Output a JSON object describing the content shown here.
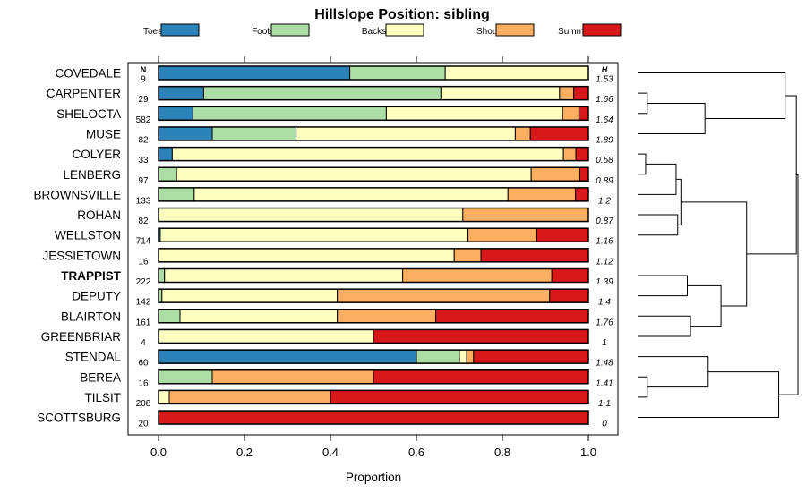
{
  "chart_data": {
    "type": "bar",
    "stacked": true,
    "orientation": "horizontal",
    "title": "Hillslope Position: sibling",
    "xlabel": "Proportion",
    "ylabel": "",
    "xlim": [
      0,
      1
    ],
    "xticks": [
      "0.0",
      "0.2",
      "0.4",
      "0.6",
      "0.8",
      "1.0"
    ],
    "n_header": "N",
    "h_header": "H",
    "legend": [
      "Toeslope",
      "Footslope",
      "Backslope",
      "Shoulder",
      "Summit"
    ],
    "colors": [
      "#2b83ba",
      "#abdda4",
      "#ffffbf",
      "#fdae61",
      "#d7191c"
    ],
    "highlight": "TRAPPIST",
    "categories": [
      "COVEDALE",
      "CARPENTER",
      "SHELOCTA",
      "MUSE",
      "COLYER",
      "LENBERG",
      "BROWNSVILLE",
      "ROHAN",
      "WELLSTON",
      "JESSIETOWN",
      "TRAPPIST",
      "DEPUTY",
      "BLAIRTON",
      "GREENBRIAR",
      "STENDAL",
      "BEREA",
      "TILSIT",
      "SCOTTSBURG"
    ],
    "n": [
      "9",
      "29",
      "582",
      "82",
      "33",
      "97",
      "133",
      "82",
      "714",
      "16",
      "222",
      "142",
      "161",
      "4",
      "60",
      "16",
      "208",
      "20"
    ],
    "h": [
      "1.53",
      "1.66",
      "1.64",
      "1.89",
      "0.58",
      "0.89",
      "1.2",
      "0.87",
      "1.16",
      "1.12",
      "1.39",
      "1.4",
      "1.76",
      "1",
      "1.48",
      "1.41",
      "1.1",
      "0"
    ],
    "series": [
      {
        "name": "Toeslope",
        "values": [
          0.445,
          0.105,
          0.08,
          0.125,
          0.032,
          0.0,
          0.0,
          0.0,
          0.004,
          0.0,
          0.0,
          0.0,
          0.0,
          0.0,
          0.6,
          0.0,
          0.0,
          0.0
        ]
      },
      {
        "name": "Footslope",
        "values": [
          0.222,
          0.552,
          0.45,
          0.195,
          0.0,
          0.042,
          0.083,
          0.0,
          0.0,
          0.0,
          0.014,
          0.008,
          0.05,
          0.0,
          0.1,
          0.125,
          0.0,
          0.0
        ]
      },
      {
        "name": "Backslope",
        "values": [
          0.333,
          0.276,
          0.41,
          0.51,
          0.91,
          0.825,
          0.73,
          0.708,
          0.716,
          0.688,
          0.554,
          0.408,
          0.366,
          0.5,
          0.017,
          0.0,
          0.025,
          0.0
        ]
      },
      {
        "name": "Shoulder",
        "values": [
          0.0,
          0.033,
          0.038,
          0.035,
          0.029,
          0.113,
          0.157,
          0.292,
          0.16,
          0.062,
          0.347,
          0.494,
          0.229,
          0.0,
          0.016,
          0.375,
          0.375,
          0.0
        ]
      },
      {
        "name": "Summit",
        "values": [
          0.0,
          0.034,
          0.022,
          0.135,
          0.029,
          0.02,
          0.03,
          0.0,
          0.12,
          0.25,
          0.085,
          0.09,
          0.355,
          0.5,
          0.267,
          0.5,
          0.6,
          1.0
        ]
      }
    ],
    "dendrogram": {
      "merge_heights": {
        "covedale_clade": 0.92,
        "carpenter_shelocta": 0.06,
        "cs_muse": 0.42,
        "colyer_lenberg": 0.05,
        "cl_brownsville": 0.24,
        "rohan_wellston": 0.25,
        "clb_rw": 0.27,
        "trappist_deputy": 0.31,
        "blairton_greenbriar": 0.33,
        "td_bg": 0.52,
        "clbrw_tdbg": 0.68,
        "upper_group": 0.99,
        "berea_tilsit": 0.06,
        "stendal_bt": 0.44,
        "sbt_scottsburg": 0.88,
        "root": 1.0
      }
    }
  }
}
